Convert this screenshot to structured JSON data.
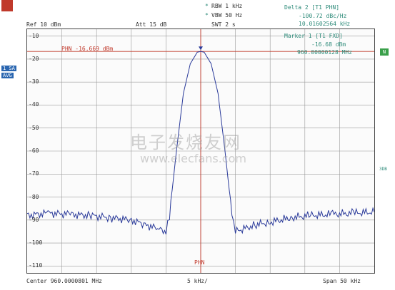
{
  "header": {
    "rbw": "RBW 1 kHz",
    "vbw": "VBW 50 Hz",
    "swt": "SWT 2 s",
    "ref": "Ref  10 dBm",
    "att": "Att  15 dB",
    "star": "*"
  },
  "delta": {
    "title": "Delta 2 [T1 PHN]",
    "value": "-100.72 dBc/Hz",
    "freq": "10.01602564 kHz"
  },
  "marker1": {
    "title": "Marker 1 [T1 FXD]",
    "value": "-16.68 dBm",
    "freq": "960.00000128 MHz"
  },
  "left_labels": {
    "one_sa": "1 SA",
    "avg": "AVG"
  },
  "right_labels": {
    "n": "N",
    "three_db": "3DB"
  },
  "phn_line_label": "PHN -16.669 dBm",
  "phn_marker_label": "PHN",
  "footer": {
    "center": "Center  960.0000801 MHz",
    "span_div": "5 kHz/",
    "span": "Span  50 kHz"
  },
  "watermark": {
    "chinese": "电子发烧友网",
    "url": "www.elecfans.com"
  },
  "colors": {
    "trace": "#2a3a9a",
    "marker": "#c0392b",
    "grid": "#999999",
    "text_teal": "#2e8b7a"
  },
  "chart_data": {
    "type": "line",
    "ylabel": "",
    "xlabel": "",
    "y_ticks": [
      "-10",
      "-20",
      "-30",
      "-40",
      "-50",
      "-60",
      "-70",
      "-80",
      "-90",
      "-100",
      "-110"
    ],
    "ylim": [
      -113,
      -7
    ],
    "xlim": [
      -25,
      25
    ],
    "grid": true,
    "series": [
      {
        "x": [
          -25,
          -22,
          -19,
          -16,
          -13,
          -10,
          -8,
          -6,
          -5,
          -4.5,
          -3.5,
          -2.5,
          -1.5,
          -0.5,
          0,
          0.5,
          1.5,
          2.5,
          3.5,
          4.5,
          5,
          6,
          8,
          10,
          13,
          16,
          19,
          22,
          25
        ],
        "y": [
          -88,
          -87,
          -87.5,
          -88,
          -89,
          -90,
          -92,
          -94,
          -95,
          -88,
          -60,
          -35,
          -22,
          -17,
          -16.7,
          -17,
          -22,
          -35,
          -60,
          -88,
          -95,
          -94,
          -92,
          -91,
          -89,
          -88,
          -87.5,
          -87,
          -86.5
        ]
      }
    ],
    "phn_level": -16.669,
    "marker_x": 0
  }
}
